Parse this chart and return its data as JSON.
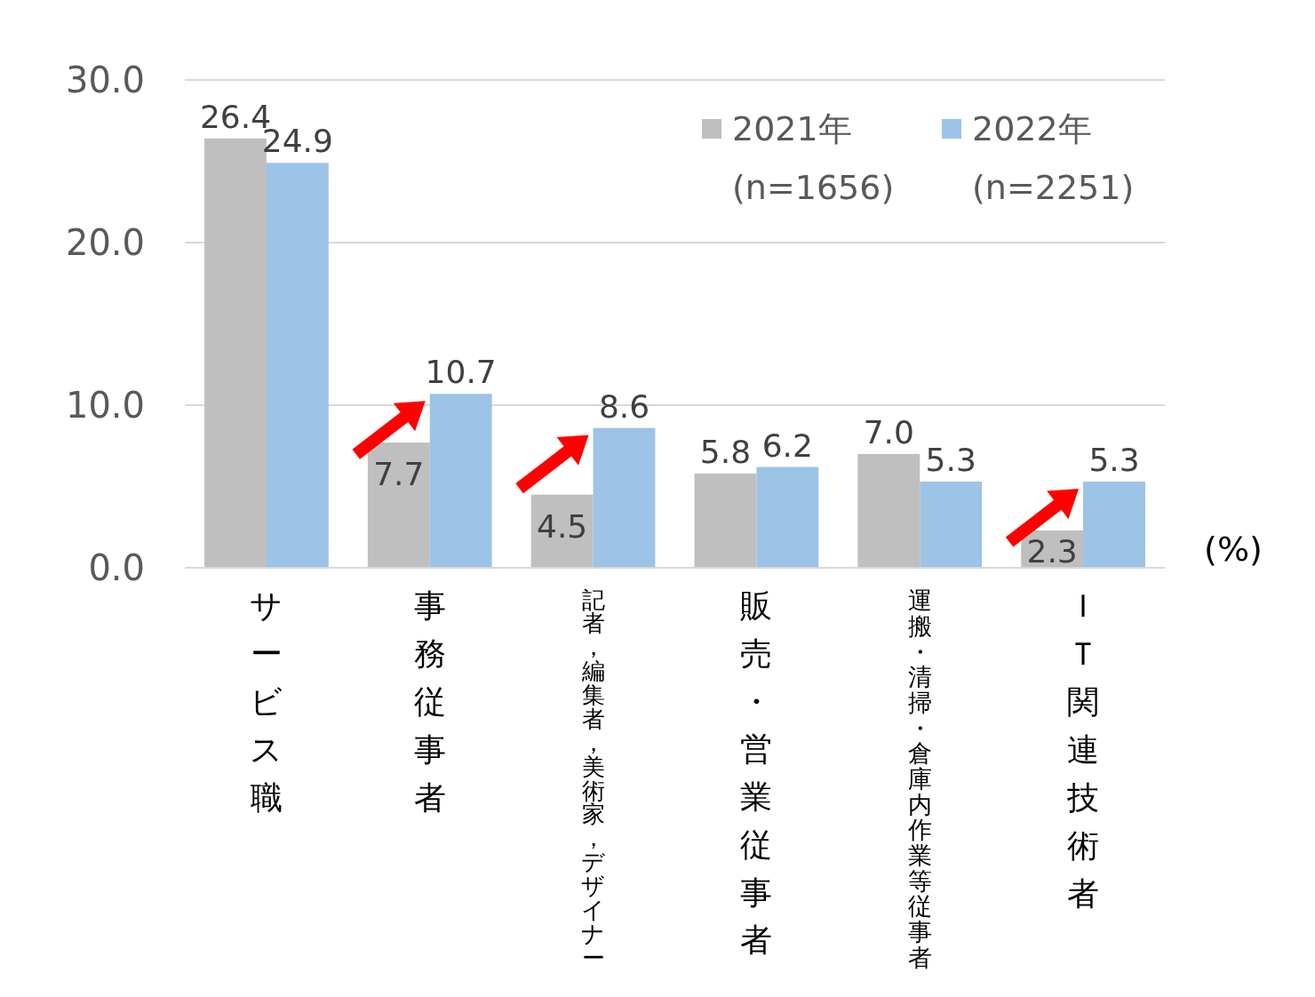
{
  "chart_data": {
    "type": "bar",
    "ylabel": "(%)",
    "categories": [
      "サービス職",
      "事務従事者",
      "記者，編集者，美術家，デザイナー",
      "販売・営業従事者",
      "運搬・清掃・倉庫内作業等従事者",
      "ＩＴ関連技術者"
    ],
    "series": [
      {
        "name": "2021年 (n=1656)",
        "color": "#bfbfbf",
        "values": [
          26.4,
          7.7,
          4.5,
          5.8,
          7.0,
          2.3
        ],
        "value_labels": [
          "26.4",
          "7.7",
          "4.5",
          "5.8",
          "7.0",
          "2.3"
        ]
      },
      {
        "name": "2022年 (n=2251)",
        "color": "#9dc3e6",
        "values": [
          24.9,
          10.7,
          8.6,
          6.2,
          5.3,
          5.3
        ],
        "value_labels": [
          "24.9",
          "10.7",
          "8.6",
          "6.2",
          "5.3",
          "5.3"
        ]
      }
    ],
    "ylim": [
      0,
      30
    ],
    "yticks": [
      {
        "value": 0,
        "label": "0.0"
      },
      {
        "value": 10,
        "label": "10.0"
      },
      {
        "value": 20,
        "label": "20.0"
      },
      {
        "value": 30,
        "label": "30.0"
      }
    ],
    "grid": "y",
    "legend": "top right"
  }
}
